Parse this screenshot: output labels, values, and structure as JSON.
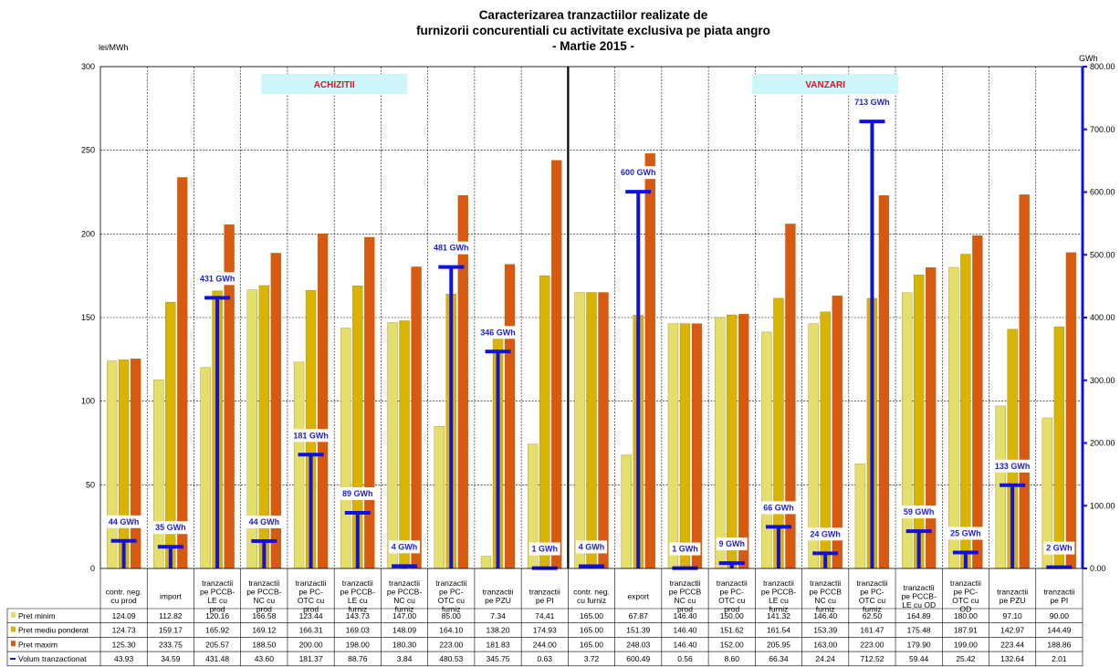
{
  "chart_data": {
    "type": "bar",
    "title_lines": [
      "Caracterizarea tranzactiilor realizate de",
      "furnizorii concurentiali cu activitate exclusiva pe piata angro",
      "- Martie 2015 -"
    ],
    "left_unit": "lei/MWh",
    "right_unit": "GWh",
    "left_axis": {
      "min": 0,
      "max": 300,
      "step": 50,
      "ticks": [
        "0",
        "50",
        "100",
        "150",
        "200",
        "250",
        "300"
      ]
    },
    "right_axis": {
      "min": 0,
      "max": 800,
      "step": 100,
      "ticks": [
        "0.00",
        "100.00",
        "200.00",
        "300.00",
        "400.00",
        "500.00",
        "600.00",
        "700.00",
        "800.00"
      ]
    },
    "sections": [
      {
        "label": "ACHIZITII",
        "count": 10
      },
      {
        "label": "VANZARI",
        "count": 11
      }
    ],
    "categories": [
      [
        "contr. neg.",
        "cu prod"
      ],
      [
        "import"
      ],
      [
        "tranzactii",
        "pe PCCB-",
        "LE cu",
        "prod"
      ],
      [
        "tranzactii",
        "pe PCCB-",
        "NC cu",
        "prod"
      ],
      [
        "tranzactii",
        "pe PC-",
        "OTC cu",
        "prod"
      ],
      [
        "tranzactii",
        "pe PCCB-",
        "LE cu",
        "furniz"
      ],
      [
        "tranzactii",
        "pe PCCB-",
        "NC cu",
        "furniz"
      ],
      [
        "tranzactii",
        "pe PC-",
        "OTC cu",
        "furniz"
      ],
      [
        "tranzactii",
        "pe PZU"
      ],
      [
        "tranzactii",
        "pe PI"
      ],
      [
        "contr. neg.",
        "cu furniz"
      ],
      [
        "export"
      ],
      [
        "tranzactii",
        "pe PCCB",
        "NC cu",
        "prod"
      ],
      [
        "tranzactii",
        "pe PC-",
        "OTC cu",
        "prod"
      ],
      [
        "tranzactii",
        "pe PCCB-",
        "LE cu",
        "furniz"
      ],
      [
        "tranzactii",
        "pe PCCB",
        "NC cu",
        "furniz"
      ],
      [
        "tranzactii",
        "pe PC-",
        "OTC cu",
        "furniz"
      ],
      [
        "tranzactii",
        "pe PCCB-",
        "LE cu OD"
      ],
      [
        "tranzactii",
        "pe PC-",
        "OTC cu",
        "OD"
      ],
      [
        "tranzactii",
        "pe PZU"
      ],
      [
        "tranzactii",
        "pe PI"
      ]
    ],
    "series": [
      {
        "name": "Pret minim",
        "color": "#e3df6a",
        "axis": "left",
        "values": [
          124.09,
          112.82,
          120.16,
          166.58,
          123.44,
          143.73,
          147.0,
          85.0,
          7.34,
          74.41,
          165.0,
          67.87,
          146.4,
          150.0,
          141.32,
          146.4,
          62.5,
          164.89,
          180.0,
          97.1,
          90.0
        ],
        "labels": [
          "124.09",
          "112.82",
          "120.16",
          "166.58",
          "123.44",
          "143.73",
          "147.00",
          "85.00",
          "7.34",
          "74.41",
          "165.00",
          "67.87",
          "146.40",
          "150.00",
          "141.32",
          "146.40",
          "62.50",
          "164.89",
          "180.00",
          "97.10",
          "90.00"
        ]
      },
      {
        "name": "Pret mediu ponderat",
        "color": "#d8b400",
        "axis": "left",
        "values": [
          124.73,
          159.17,
          165.92,
          169.12,
          166.31,
          169.03,
          148.09,
          164.1,
          138.2,
          174.93,
          165.0,
          151.39,
          146.4,
          151.62,
          161.54,
          153.39,
          161.47,
          175.48,
          187.91,
          142.97,
          144.49
        ],
        "labels": [
          "124.73",
          "159.17",
          "165.92",
          "169.12",
          "166.31",
          "169.03",
          "148.09",
          "164.10",
          "138.20",
          "174.93",
          "165.00",
          "151.39",
          "146.40",
          "151.62",
          "161.54",
          "153.39",
          "161.47",
          "175.48",
          "187.91",
          "142.97",
          "144.49"
        ]
      },
      {
        "name": "Pret maxim",
        "color": "#d85a10",
        "axis": "left",
        "values": [
          125.3,
          233.75,
          205.57,
          188.5,
          200.0,
          198.0,
          180.3,
          223.0,
          181.83,
          244.0,
          165.0,
          248.03,
          146.4,
          152.0,
          205.95,
          163.0,
          223.0,
          179.9,
          199.0,
          223.44,
          188.86
        ],
        "labels": [
          "125.30",
          "233.75",
          "205.57",
          "188.50",
          "200.00",
          "198.00",
          "180.30",
          "223.00",
          "181.83",
          "244.00",
          "165.00",
          "248.03",
          "146.40",
          "152.00",
          "205.95",
          "163.00",
          "223.00",
          "179.90",
          "199.00",
          "223.44",
          "188.86"
        ]
      },
      {
        "name": "Volum tranzactionat",
        "color": "#1010e0",
        "axis": "right",
        "values": [
          43.93,
          34.59,
          431.48,
          43.6,
          181.37,
          88.76,
          3.84,
          480.53,
          345.75,
          0.63,
          3.72,
          600.49,
          0.56,
          8.6,
          66.34,
          24.24,
          712.52,
          59.44,
          25.42,
          132.64,
          2.01
        ],
        "labels": [
          "43.93",
          "34.59",
          "431.48",
          "43.60",
          "181.37",
          "88.76",
          "3.84",
          "480.53",
          "345.75",
          "0.63",
          "3.72",
          "600.49",
          "0.56",
          "8.60",
          "66.34",
          "24.24",
          "712.52",
          "59.44",
          "25.42",
          "132.64",
          "2.01"
        ],
        "point_labels": [
          "44 GWh",
          "35 GWh",
          "431 GWh",
          "44 GWh",
          "181 GWh",
          "89 GWh",
          "4 GWh",
          "481 GWh",
          "346 GWh",
          "1 GWh",
          "4 GWh",
          "600 GWh",
          "1 GWh",
          "9 GWh",
          "66 GWh",
          "24 GWh",
          "713 GWh",
          "59 GWh",
          "25 GWh",
          "133 GWh",
          "2 GWh"
        ]
      }
    ],
    "grid": true,
    "data_table": true
  }
}
